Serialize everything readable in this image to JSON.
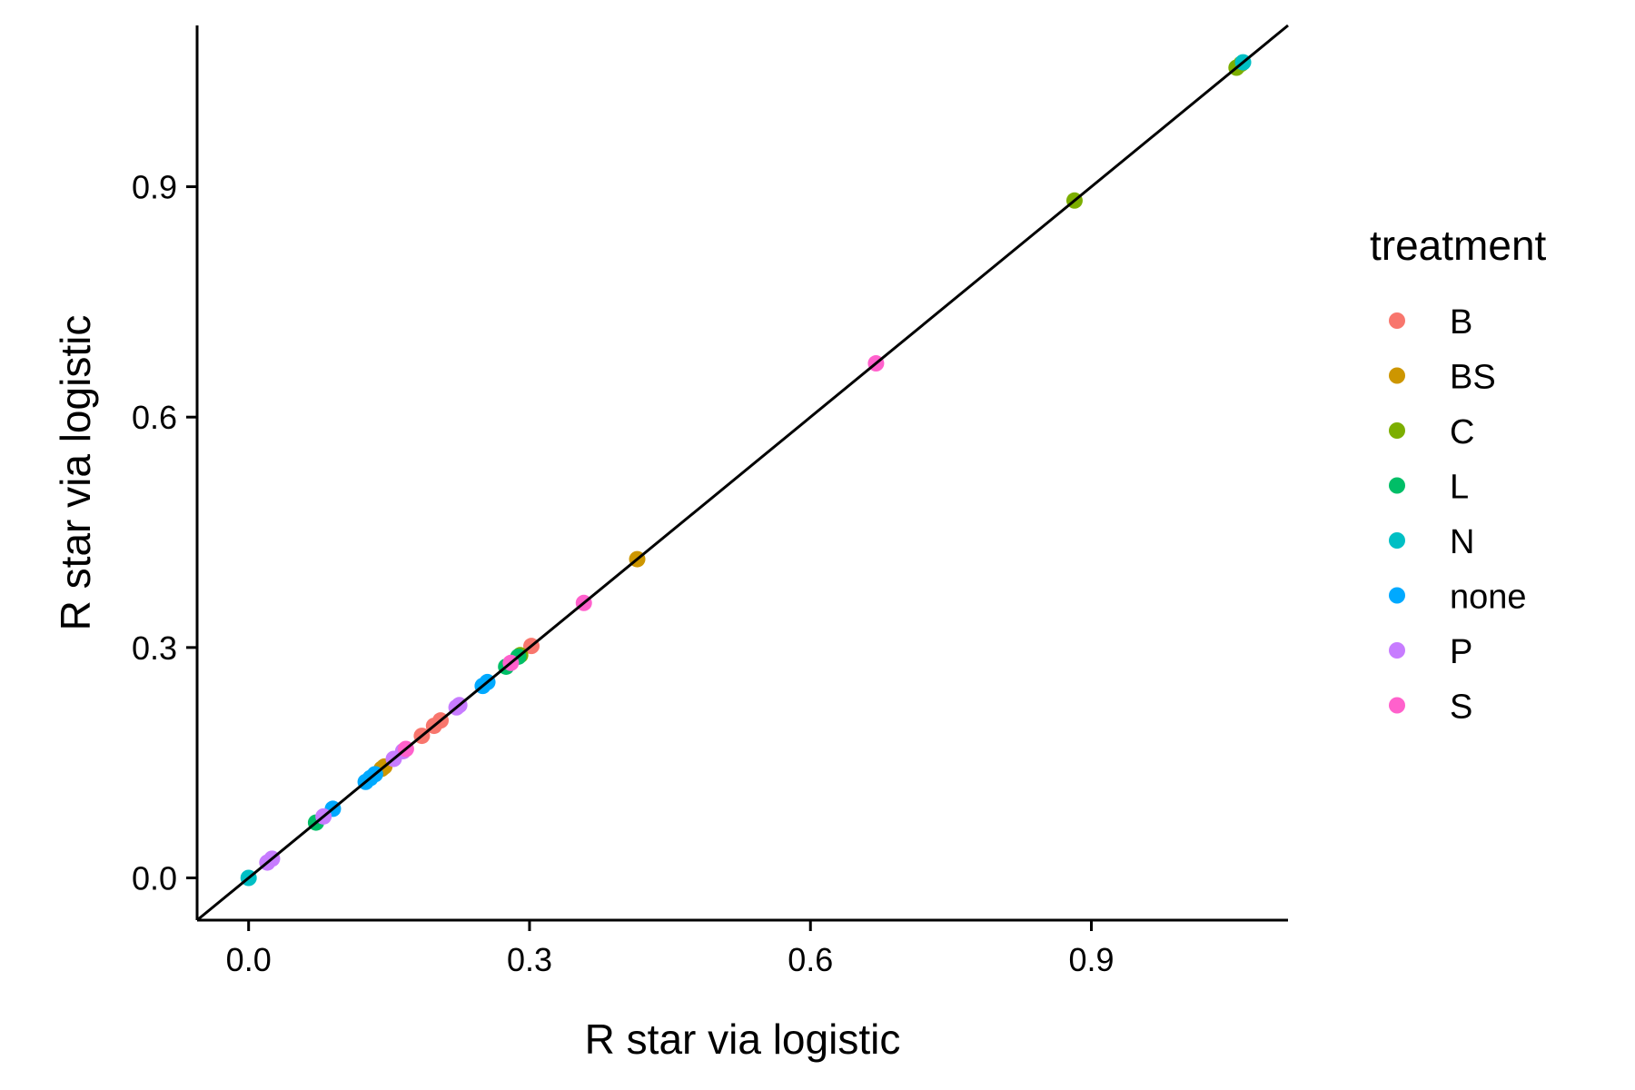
{
  "chart_data": {
    "type": "scatter",
    "title": "",
    "xlabel": "R star via logistic",
    "ylabel": "R star via logistic",
    "xlim": [
      -0.055,
      1.11
    ],
    "ylim": [
      -0.055,
      1.11
    ],
    "xticks": [
      0.0,
      0.3,
      0.6,
      0.9
    ],
    "yticks": [
      0.0,
      0.3,
      0.6,
      0.9
    ],
    "xtick_labels": [
      "0.0",
      "0.3",
      "0.6",
      "0.9"
    ],
    "ytick_labels": [
      "0.0",
      "0.3",
      "0.6",
      "0.9"
    ],
    "grid": false,
    "reference_line": "y = x",
    "legend": {
      "title": "treatment",
      "placement": "right",
      "entries": [
        {
          "name": "B",
          "color": "#F8766D"
        },
        {
          "name": "BS",
          "color": "#CD9600"
        },
        {
          "name": "C",
          "color": "#7CAE00"
        },
        {
          "name": "L",
          "color": "#00BE67"
        },
        {
          "name": "N",
          "color": "#00BFC4"
        },
        {
          "name": "none",
          "color": "#00A9FF"
        },
        {
          "name": "P",
          "color": "#C77CFF"
        },
        {
          "name": "S",
          "color": "#FF61CC"
        }
      ]
    },
    "series": [
      {
        "name": "B",
        "points": [
          [
            0.198,
            0.198
          ],
          [
            0.205,
            0.205
          ],
          [
            0.302,
            0.302
          ],
          [
            0.185,
            0.185
          ]
        ]
      },
      {
        "name": "BS",
        "points": [
          [
            0.415,
            0.415
          ],
          [
            0.142,
            0.142
          ],
          [
            0.145,
            0.145
          ]
        ]
      },
      {
        "name": "C",
        "points": [
          [
            0.882,
            0.882
          ],
          [
            1.055,
            1.055
          ],
          [
            1.06,
            1.06
          ],
          [
            0.29,
            0.29
          ]
        ]
      },
      {
        "name": "L",
        "points": [
          [
            0.072,
            0.072
          ],
          [
            0.275,
            0.275
          ],
          [
            0.288,
            0.288
          ]
        ]
      },
      {
        "name": "N",
        "points": [
          [
            0.0,
            0.0
          ],
          [
            1.062,
            1.062
          ]
        ]
      },
      {
        "name": "none",
        "points": [
          [
            0.09,
            0.09
          ],
          [
            0.125,
            0.125
          ],
          [
            0.13,
            0.13
          ],
          [
            0.135,
            0.135
          ],
          [
            0.25,
            0.25
          ],
          [
            0.255,
            0.255
          ]
        ]
      },
      {
        "name": "P",
        "points": [
          [
            0.02,
            0.02
          ],
          [
            0.025,
            0.025
          ],
          [
            0.08,
            0.08
          ],
          [
            0.155,
            0.155
          ],
          [
            0.165,
            0.165
          ],
          [
            0.222,
            0.222
          ],
          [
            0.225,
            0.225
          ]
        ]
      },
      {
        "name": "S",
        "points": [
          [
            0.67,
            0.67
          ],
          [
            0.358,
            0.358
          ],
          [
            0.168,
            0.168
          ],
          [
            0.28,
            0.28
          ]
        ]
      }
    ]
  }
}
